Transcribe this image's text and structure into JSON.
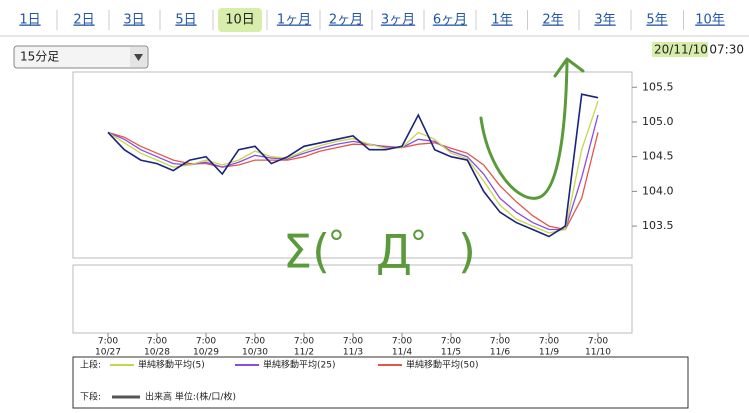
{
  "tabs": [
    "1日",
    "2日",
    "3日",
    "5日",
    "10日",
    "1ヶ月",
    "2ヶ月",
    "3ヶ月",
    "6ヶ月",
    "1年",
    "2年",
    "3年",
    "5年",
    "10年"
  ],
  "selected_tab": 4,
  "interval_select": "15分足",
  "timestamp_date": "20/11/10",
  "timestamp_time": "07:30",
  "annotation": "Σ(゜Д゜)",
  "chart_data": {
    "type": "line",
    "categories": [
      "10/27",
      null,
      null,
      "10/28",
      null,
      null,
      "10/29",
      null,
      null,
      "10/30",
      null,
      null,
      "11/2",
      null,
      null,
      "11/3",
      null,
      null,
      "11/4",
      null,
      null,
      "11/5",
      null,
      null,
      "11/6",
      null,
      null,
      "11/9",
      null,
      null,
      "11/10"
    ],
    "category_times": [
      "7:00",
      null,
      null,
      "7:00",
      null,
      null,
      "7:00",
      null,
      null,
      "7:00",
      null,
      null,
      "7:00",
      null,
      null,
      "7:00",
      null,
      null,
      "7:00",
      null,
      null,
      "7:00",
      null,
      null,
      "7:00",
      null,
      null,
      "7:00",
      null,
      null,
      "7:00"
    ],
    "ylim": [
      103.04,
      105.72
    ],
    "yticks": [
      103.5,
      {
        "value": 104,
        "label": "104.0"
      },
      104.5,
      {
        "value": 105,
        "label": "105.0"
      },
      105.5
    ],
    "price_color": "#1a237e",
    "values": [
      104.85,
      104.6,
      104.45,
      104.4,
      104.3,
      104.45,
      104.5,
      104.25,
      104.6,
      104.65,
      104.4,
      104.5,
      104.65,
      104.7,
      104.75,
      104.8,
      104.6,
      104.6,
      104.65,
      105.1,
      104.6,
      104.5,
      104.45,
      104.0,
      103.7,
      103.55,
      103.45,
      103.35,
      103.5,
      105.4,
      105.35
    ],
    "upper_legend_label": "上段:",
    "lower_legend_label": "下段:",
    "series": [
      {
        "name": "単純移動平均(5)",
        "color": "#c5d84a",
        "values": [
          104.85,
          104.7,
          104.55,
          104.45,
          104.35,
          104.38,
          104.45,
          104.38,
          104.45,
          104.58,
          104.5,
          104.48,
          104.58,
          104.66,
          104.72,
          104.76,
          104.68,
          104.62,
          104.63,
          104.85,
          104.75,
          104.55,
          104.47,
          104.15,
          103.8,
          103.6,
          103.5,
          103.4,
          103.45,
          104.6,
          105.3
        ]
      },
      {
        "name": "単純移動平均(25)",
        "color": "#8a4de0",
        "values": [
          104.85,
          104.75,
          104.6,
          104.5,
          104.4,
          104.38,
          104.42,
          104.35,
          104.42,
          104.52,
          104.48,
          104.47,
          104.55,
          104.62,
          104.68,
          104.72,
          104.68,
          104.64,
          104.63,
          104.75,
          104.72,
          104.58,
          104.5,
          104.25,
          103.9,
          103.7,
          103.55,
          103.45,
          103.45,
          104.2,
          105.1
        ]
      },
      {
        "name": "単純移動平均(50)",
        "color": "#e0584a",
        "values": [
          104.85,
          104.78,
          104.65,
          104.55,
          104.45,
          104.4,
          104.4,
          104.35,
          104.38,
          104.45,
          104.45,
          104.45,
          104.5,
          104.58,
          104.63,
          104.68,
          104.67,
          104.65,
          104.63,
          104.68,
          104.7,
          104.62,
          104.55,
          104.38,
          104.08,
          103.85,
          103.65,
          103.5,
          103.45,
          103.9,
          104.85
        ]
      }
    ],
    "volume_legend": "出来高 単位:(株/口/枚)",
    "volume_color": "#555555"
  }
}
